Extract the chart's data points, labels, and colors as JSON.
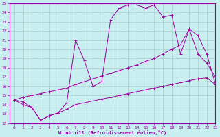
{
  "xlabel": "Windchill (Refroidissement éolien,°C)",
  "xlim": [
    -0.5,
    23
  ],
  "ylim": [
    12,
    25
  ],
  "xticks": [
    0,
    1,
    2,
    3,
    4,
    5,
    6,
    7,
    8,
    9,
    10,
    11,
    12,
    13,
    14,
    15,
    16,
    17,
    18,
    19,
    20,
    21,
    22,
    23
  ],
  "yticks": [
    12,
    13,
    14,
    15,
    16,
    17,
    18,
    19,
    20,
    21,
    22,
    23,
    24,
    25
  ],
  "background_color": "#c8eef0",
  "grid_color": "#aacccc",
  "line_color": "#990099",
  "line1_x": [
    0,
    1,
    2,
    3,
    4,
    5,
    6,
    7,
    8,
    9,
    10,
    11,
    12,
    13,
    14,
    15,
    16,
    17,
    18,
    19,
    20,
    21,
    22,
    23
  ],
  "line1_y": [
    14.5,
    14.0,
    13.7,
    12.3,
    12.8,
    13.1,
    14.2,
    21.0,
    18.8,
    16.0,
    16.5,
    23.2,
    24.5,
    24.8,
    24.8,
    24.5,
    24.8,
    23.5,
    23.7,
    19.5,
    22.2,
    19.5,
    18.5,
    17.0
  ],
  "line2_x": [
    0,
    1,
    2,
    3,
    4,
    5,
    6,
    7,
    8,
    9,
    10,
    11,
    12,
    13,
    14,
    15,
    16,
    17,
    18,
    19,
    20,
    21,
    22,
    23
  ],
  "line2_y": [
    14.5,
    14.8,
    15.0,
    15.2,
    15.4,
    15.6,
    15.8,
    16.2,
    16.5,
    16.8,
    17.1,
    17.4,
    17.7,
    18.0,
    18.3,
    18.7,
    19.0,
    19.5,
    20.0,
    20.5,
    22.2,
    21.5,
    19.5,
    16.2
  ],
  "line3_x": [
    0,
    1,
    2,
    3,
    4,
    5,
    6,
    7,
    8,
    9,
    10,
    11,
    12,
    13,
    14,
    15,
    16,
    17,
    18,
    19,
    20,
    21,
    22,
    23
  ],
  "line3_y": [
    14.5,
    14.3,
    13.7,
    12.3,
    12.8,
    13.1,
    13.5,
    14.0,
    14.2,
    14.4,
    14.6,
    14.8,
    15.0,
    15.2,
    15.4,
    15.6,
    15.8,
    16.0,
    16.2,
    16.4,
    16.6,
    16.8,
    16.9,
    16.2
  ]
}
